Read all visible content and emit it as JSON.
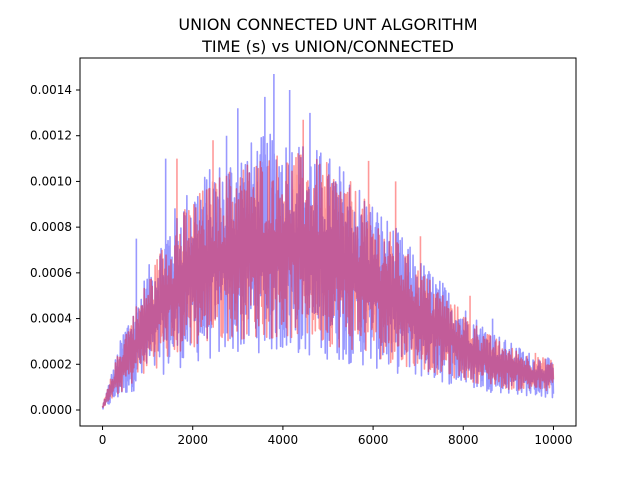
{
  "chart_data": {
    "type": "line",
    "title": "UNION CONNECTED UNT ALGORITHM",
    "subtitle": "TIME (s) vs UNION/CONNECTED",
    "xlabel": "",
    "ylabel": "",
    "xlim": [
      -500,
      10500
    ],
    "ylim": [
      -7e-05,
      0.00154
    ],
    "x_ticks": [
      0,
      2000,
      4000,
      6000,
      8000,
      10000
    ],
    "x_tick_labels": [
      "0",
      "2000",
      "4000",
      "6000",
      "8000",
      "10000"
    ],
    "y_ticks": [
      0.0,
      0.0002,
      0.0004,
      0.0006,
      0.0008,
      0.001,
      0.0012,
      0.0014
    ],
    "y_tick_labels": [
      "0.0000",
      "0.0002",
      "0.0004",
      "0.0006",
      "0.0008",
      "0.0010",
      "0.0012",
      "0.0014"
    ],
    "grid": false,
    "series": [
      {
        "color": "#ff0000",
        "alpha": 0.4,
        "band": {
          "x": [
            0,
            500,
            1000,
            1500,
            2000,
            2500,
            3000,
            3500,
            4000,
            4500,
            5000,
            5500,
            6000,
            6500,
            7000,
            7500,
            8000,
            8500,
            9000,
            9500,
            10000
          ],
          "low": [
            1e-05,
            9e-05,
            0.00016,
            0.00022,
            0.00026,
            0.00029,
            0.00031,
            0.00031,
            0.00031,
            0.0003,
            0.00028,
            0.00026,
            0.00023,
            0.0002,
            0.00018,
            0.00015,
            0.00013,
            0.00011,
            9e-05,
            8e-05,
            8e-05
          ],
          "high": [
            2e-05,
            0.00035,
            0.00058,
            0.0008,
            0.00093,
            0.00102,
            0.00108,
            0.00112,
            0.00114,
            0.00112,
            0.00108,
            0.001,
            0.00088,
            0.00075,
            0.00063,
            0.00053,
            0.00043,
            0.00034,
            0.00028,
            0.00024,
            0.00022
          ]
        },
        "spikes": [
          [
            1650,
            0.0011
          ],
          [
            2450,
            0.00118
          ],
          [
            4450,
            0.00127
          ],
          [
            5900,
            0.00109
          ],
          [
            6500,
            0.001
          ],
          [
            7050,
            0.00076
          ],
          [
            8150,
            0.0005
          ],
          [
            9600,
            0.00025
          ]
        ]
      },
      {
        "color": "#0000ff",
        "alpha": 0.4,
        "band": {
          "x": [
            0,
            500,
            1000,
            1500,
            2000,
            2500,
            3000,
            3500,
            4000,
            4500,
            5000,
            5500,
            6000,
            6500,
            7000,
            7500,
            8000,
            8500,
            9000,
            9500,
            10000
          ],
          "low": [
            0.0,
            6e-05,
            0.00012,
            0.00017,
            0.0002,
            0.00022,
            0.00024,
            0.00025,
            0.00024,
            0.00023,
            0.00022,
            0.0002,
            0.00018,
            0.00016,
            0.00014,
            0.00012,
            0.0001,
            8e-05,
            7e-05,
            6e-05,
            5e-05
          ],
          "high": [
            2e-05,
            0.00038,
            0.00062,
            0.00086,
            0.001,
            0.00108,
            0.00115,
            0.0012,
            0.00122,
            0.00118,
            0.00112,
            0.00104,
            0.00092,
            0.0008,
            0.00067,
            0.00057,
            0.00046,
            0.00037,
            0.0003,
            0.00025,
            0.00022
          ]
        },
        "spikes": [
          [
            750,
            0.00075
          ],
          [
            1400,
            0.0011
          ],
          [
            2750,
            0.0012
          ],
          [
            3000,
            0.00132
          ],
          [
            3600,
            0.00137
          ],
          [
            3800,
            0.00147
          ],
          [
            4150,
            0.0014
          ],
          [
            4600,
            0.0013
          ],
          [
            8650,
            0.0004
          ]
        ]
      }
    ]
  }
}
